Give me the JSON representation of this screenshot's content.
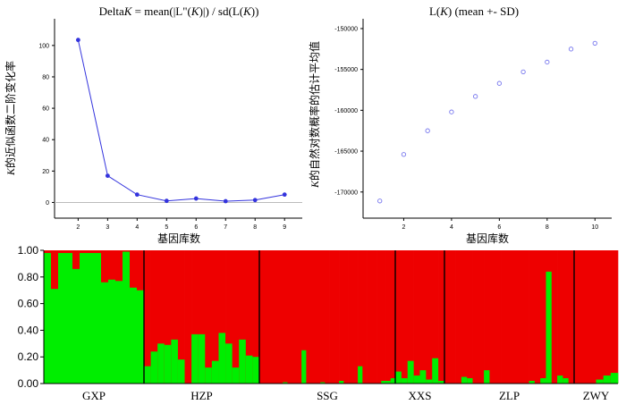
{
  "chart_data": [
    {
      "type": "line",
      "title_pre": "Delta",
      "title_it": "K",
      "title_mid": " = mean(|L\"(",
      "title_it2": "K",
      "title_mid2": ")|) / sd(L(",
      "title_it3": "K",
      "title_post": "))",
      "xlabel": "基因库数",
      "ylabel_it": "K",
      "ylabel_rest": "的近似函数二阶变化率",
      "x": [
        2,
        3,
        4,
        5,
        6,
        7,
        8,
        9
      ],
      "y": [
        103.5,
        17.0,
        5.0,
        1.0,
        2.5,
        0.8,
        1.5,
        5.0
      ],
      "xticks": [
        "2",
        "3",
        "4",
        "5",
        "6",
        "7",
        "8",
        "9"
      ],
      "yticks": [
        "100",
        "80",
        "60",
        "40",
        "20",
        "0"
      ],
      "ytick_values": [
        100,
        80,
        60,
        40,
        20,
        0
      ],
      "xlim": [
        1.2,
        9.6
      ],
      "ylim": [
        -10,
        117
      ],
      "color": "#3333dd"
    },
    {
      "type": "scatter",
      "title_pre": "L(",
      "title_it": "K",
      "title_post": ") (mean +- SD)",
      "xlabel": "基因库数",
      "ylabel_it": "K",
      "ylabel_rest": "的自然对数概率的估计平均值",
      "x": [
        1,
        2,
        3,
        4,
        5,
        6,
        7,
        8,
        9,
        10
      ],
      "y": [
        -171100,
        -165400,
        -162500,
        -160200,
        -158300,
        -156700,
        -155300,
        -154100,
        -152500,
        -151800
      ],
      "xticks": [
        "2",
        "4",
        "6",
        "8",
        "10"
      ],
      "xtick_values": [
        2,
        4,
        6,
        8,
        10
      ],
      "yticks": [
        "-150000",
        "-155000",
        "-160000",
        "-165000",
        "-170000"
      ],
      "ytick_values": [
        -150000,
        -155000,
        -160000,
        -165000,
        -170000
      ],
      "xlim": [
        0.3,
        10.7
      ],
      "ylim": [
        -173200,
        -148800
      ],
      "color": "#7777ee"
    },
    {
      "type": "bar",
      "subtype": "stacked-structure",
      "yticks": [
        "1.00",
        "0.80",
        "0.60",
        "0.40",
        "0.20",
        "0.00"
      ],
      "ytick_values": [
        1,
        0.8,
        0.6,
        0.4,
        0.2,
        0
      ],
      "colors": {
        "cluster1": "#00ee00",
        "cluster2": "#ee0000",
        "separator": "#000000"
      },
      "groups": [
        {
          "name": "GXP",
          "values": [
            0.98,
            0.71,
            0.98,
            0.98,
            0.86,
            0.98,
            0.98,
            0.98,
            0.76,
            0.78,
            0.77,
            0.99,
            0.72,
            0.7
          ]
        },
        {
          "name": "HZP",
          "values": [
            0.13,
            0.24,
            0.3,
            0.29,
            0.33,
            0.18,
            0.0,
            0.37,
            0.37,
            0.12,
            0.17,
            0.38,
            0.3,
            0.12,
            0.33,
            0.21,
            0.2
          ]
        },
        {
          "name": "SSG",
          "values": [
            0,
            0,
            0,
            0,
            0,
            0.01,
            0,
            0,
            0,
            0.25,
            0,
            0,
            0,
            0.01,
            0,
            0,
            0,
            0.02,
            0,
            0,
            0,
            0.13,
            0,
            0,
            0,
            0,
            0.02,
            0.02,
            0.04
          ]
        },
        {
          "name": "XXS",
          "values": [
            0.09,
            0.04,
            0.17,
            0.06,
            0.1,
            0.03,
            0.19,
            0.02
          ]
        },
        {
          "name": "ZLP",
          "values": [
            0,
            0,
            0,
            0.05,
            0.04,
            0,
            0,
            0.1,
            0,
            0,
            0,
            0,
            0,
            0,
            0,
            0.02,
            0,
            0.04,
            0.84,
            0,
            0.06,
            0.04,
            0
          ]
        },
        {
          "name": "ZWY",
          "values": [
            0,
            0,
            0,
            0.03,
            0.06,
            0.08
          ]
        }
      ]
    }
  ]
}
